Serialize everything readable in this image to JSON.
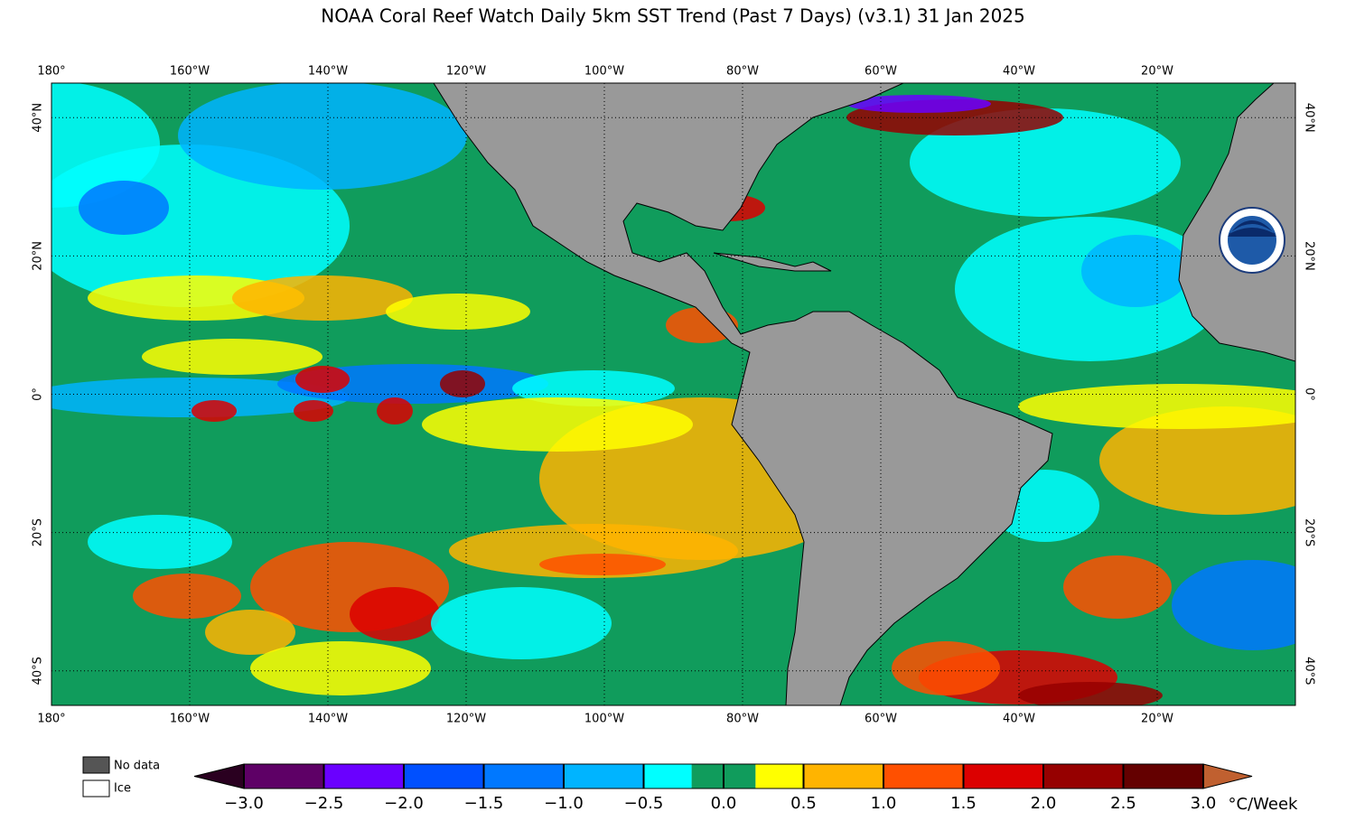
{
  "title": "NOAA Coral Reef Watch Daily 5km SST Trend (Past 7 Days)  (v3.1)   31 Jan 2025",
  "map": {
    "lonlim": [
      -180,
      0
    ],
    "latlim": [
      -45,
      45
    ],
    "lonticks": [
      {
        "value": -180,
        "label": "180°"
      },
      {
        "value": -160,
        "label": "160°W"
      },
      {
        "value": -140,
        "label": "140°W"
      },
      {
        "value": -120,
        "label": "120°W"
      },
      {
        "value": -100,
        "label": "100°W"
      },
      {
        "value": -80,
        "label": "80°W"
      },
      {
        "value": -60,
        "label": "60°W"
      },
      {
        "value": -40,
        "label": "40°W"
      },
      {
        "value": -20,
        "label": "20°W"
      }
    ],
    "latticks": [
      {
        "value": -40,
        "label": "40°S"
      },
      {
        "value": -20,
        "label": "20°S"
      },
      {
        "value": 0,
        "label": "0°"
      },
      {
        "value": 20,
        "label": "20°N"
      },
      {
        "value": 40,
        "label": "40°N"
      }
    ],
    "grid": true
  },
  "legend": {
    "no_data": "No data",
    "ice": "Ice"
  },
  "colorbar": {
    "range": [
      -3,
      3
    ],
    "bounds": [
      -3,
      -2.5,
      -2,
      -1.5,
      -1,
      -0.5,
      -0.2,
      0,
      0.2,
      0.5,
      1,
      1.5,
      2,
      2.5,
      3
    ],
    "colors": [
      "#5e0066",
      "#6a00ff",
      "#0050ff",
      "#0078ff",
      "#00b4ff",
      "#00ffff",
      "#109c5c",
      "#109c5c",
      "#ffff00",
      "#ffb400",
      "#ff5000",
      "#dc0000",
      "#960000",
      "#640000"
    ],
    "under_color": "#2a0020",
    "over_color": "#c06030",
    "ticks": [
      {
        "value": -3,
        "label": "−3.0"
      },
      {
        "value": -2.5,
        "label": "−2.5"
      },
      {
        "value": -2,
        "label": "−2.0"
      },
      {
        "value": -1.5,
        "label": "−1.5"
      },
      {
        "value": -1,
        "label": "−1.0"
      },
      {
        "value": -0.5,
        "label": "−0.5"
      },
      {
        "value": 0,
        "label": "0.0"
      },
      {
        "value": 0.5,
        "label": "0.5"
      },
      {
        "value": 1,
        "label": "1.0"
      },
      {
        "value": 1.5,
        "label": "1.5"
      },
      {
        "value": 2,
        "label": "2.0"
      },
      {
        "value": 2.5,
        "label": "2.5"
      },
      {
        "value": 3,
        "label": "3.0"
      }
    ],
    "unit": "°C/Week"
  }
}
